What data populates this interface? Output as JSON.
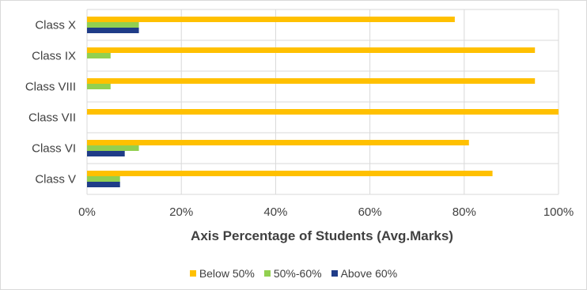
{
  "chart_data": {
    "type": "bar",
    "orientation": "horizontal",
    "xlabel": "Axis Percentage of Students (Avg.Marks)",
    "categories": [
      "Class X",
      "Class IX",
      "Class VIII",
      "Class VII",
      "Class VI",
      "Class V"
    ],
    "series": [
      {
        "name": "Below 50%",
        "color": "#ffc000",
        "values": [
          78,
          95,
          95,
          100,
          81,
          86
        ]
      },
      {
        "name": "50%-60%",
        "color": "#92d050",
        "values": [
          11,
          5,
          5,
          0,
          11,
          7
        ]
      },
      {
        "name": "Above 60%",
        "color": "#1f3c88",
        "values": [
          11,
          0,
          0,
          0,
          8,
          7
        ]
      }
    ],
    "xlim": [
      0,
      100
    ],
    "xticks": [
      "0%",
      "20%",
      "40%",
      "60%",
      "80%",
      "100%"
    ],
    "grid": true,
    "legend_position": "bottom"
  }
}
